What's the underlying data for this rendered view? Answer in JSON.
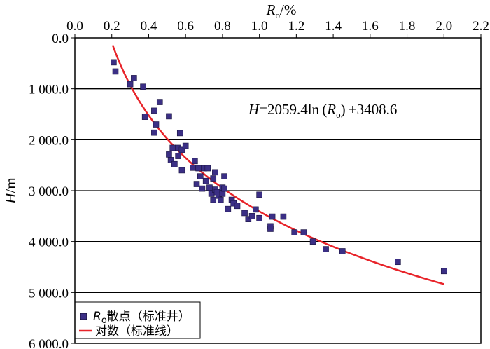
{
  "chart_data": {
    "type": "scatter",
    "x_axis": {
      "label_main": "R",
      "label_sub": "o",
      "label_unit": "/%",
      "position": "top",
      "lim": [
        0.0,
        2.2
      ],
      "ticks": [
        0.0,
        0.2,
        0.4,
        0.6,
        0.8,
        1.0,
        1.2,
        1.4,
        1.6,
        1.8,
        2.0,
        2.2
      ],
      "tick_labels": [
        "0.0",
        "0.2",
        "0.4",
        "0.6",
        "0.8",
        "1.0",
        "1.2",
        "1.4",
        "1.6",
        "1.8",
        "2.0",
        "2.2"
      ]
    },
    "y_axis": {
      "label_main": "H",
      "label_unit": "/m",
      "inverted": true,
      "lim": [
        0,
        6000
      ],
      "ticks": [
        0,
        1000,
        2000,
        3000,
        4000,
        5000,
        6000
      ],
      "tick_labels": [
        "0.0",
        "1 000.0",
        "2 000.0",
        "3 000.0",
        "4 000.0",
        "5 000.0",
        "6 000.0"
      ]
    },
    "grid": "horizontal",
    "equation": {
      "H": "H",
      "mid": "=2059.4ln (",
      "R": "R",
      "sub": "o",
      "tail": ") +3408.6"
    },
    "legend": {
      "placement": "bottom-left",
      "scatter_label_main": "R",
      "scatter_label_sub": "o",
      "scatter_label_rest": "散点（标准井）",
      "line_label": "对数（标准线）"
    },
    "colors": {
      "scatter": "#3b2f85",
      "line": "#e8242a",
      "axis": "#000000"
    },
    "series": [
      {
        "type": "scatter",
        "points": [
          [
            0.21,
            480
          ],
          [
            0.22,
            660
          ],
          [
            0.3,
            910
          ],
          [
            0.32,
            790
          ],
          [
            0.37,
            960
          ],
          [
            0.38,
            1550
          ],
          [
            0.43,
            1430
          ],
          [
            0.44,
            1700
          ],
          [
            0.43,
            1860
          ],
          [
            0.46,
            1260
          ],
          [
            0.51,
            1540
          ],
          [
            0.51,
            2290
          ],
          [
            0.52,
            2400
          ],
          [
            0.53,
            2160
          ],
          [
            0.54,
            2480
          ],
          [
            0.56,
            2160
          ],
          [
            0.56,
            2320
          ],
          [
            0.57,
            1870
          ],
          [
            0.58,
            2200
          ],
          [
            0.58,
            2600
          ],
          [
            0.6,
            2120
          ],
          [
            0.64,
            2550
          ],
          [
            0.65,
            2420
          ],
          [
            0.66,
            2870
          ],
          [
            0.67,
            2560
          ],
          [
            0.68,
            2720
          ],
          [
            0.69,
            2960
          ],
          [
            0.7,
            2560
          ],
          [
            0.71,
            2810
          ],
          [
            0.72,
            2560
          ],
          [
            0.73,
            2940
          ],
          [
            0.74,
            3060
          ],
          [
            0.75,
            2760
          ],
          [
            0.75,
            3180
          ],
          [
            0.76,
            2980
          ],
          [
            0.76,
            2640
          ],
          [
            0.77,
            3030
          ],
          [
            0.78,
            3100
          ],
          [
            0.79,
            3180
          ],
          [
            0.8,
            2940
          ],
          [
            0.8,
            3060
          ],
          [
            0.81,
            2960
          ],
          [
            0.81,
            2720
          ],
          [
            0.83,
            3360
          ],
          [
            0.85,
            3180
          ],
          [
            0.86,
            3250
          ],
          [
            0.88,
            3300
          ],
          [
            0.92,
            3440
          ],
          [
            0.94,
            3560
          ],
          [
            0.96,
            3500
          ],
          [
            0.98,
            3370
          ],
          [
            1.0,
            3540
          ],
          [
            1.0,
            3080
          ],
          [
            1.06,
            3700
          ],
          [
            1.06,
            3750
          ],
          [
            1.07,
            3510
          ],
          [
            1.13,
            3510
          ],
          [
            1.19,
            3820
          ],
          [
            1.24,
            3820
          ],
          [
            1.29,
            4000
          ],
          [
            1.36,
            4150
          ],
          [
            1.45,
            4190
          ],
          [
            1.75,
            4400
          ],
          [
            2.0,
            4580
          ]
        ]
      },
      {
        "type": "line",
        "function": "H = 2059.4 ln(Ro) + 3408.6",
        "a": 2059.4,
        "b": 3408.6,
        "x_range": [
          0.205,
          2.0
        ]
      }
    ]
  }
}
